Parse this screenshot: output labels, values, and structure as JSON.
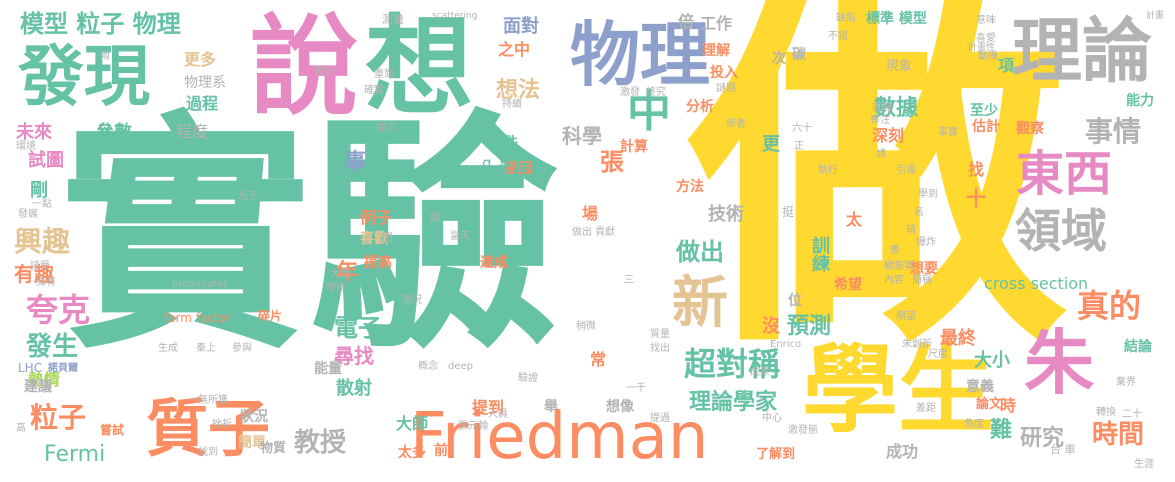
{
  "palette": {
    "green": "#66c2a5",
    "yellow": "#ffd92f",
    "orange": "#fc8d62",
    "blue": "#8da0cb",
    "pink": "#e78ac3",
    "lime": "#a6d854",
    "tan": "#e5c494",
    "gray": "#b3b3b3"
  },
  "words": [
    {
      "text": "實驗",
      "color": "green"
    },
    {
      "text": "做",
      "color": "yellow"
    },
    {
      "text": "說",
      "color": "pink"
    },
    {
      "text": "想",
      "color": "green"
    },
    {
      "text": "物理",
      "color": "blue"
    },
    {
      "text": "理論",
      "color": "gray"
    },
    {
      "text": "發現",
      "color": "green"
    },
    {
      "text": "學生",
      "color": "yellow"
    },
    {
      "text": "Friedman",
      "color": "orange"
    },
    {
      "text": "質子",
      "color": "orange"
    },
    {
      "text": "朱",
      "color": "pink"
    },
    {
      "text": "東西",
      "color": "pink"
    },
    {
      "text": "領域",
      "color": "gray"
    },
    {
      "text": "中",
      "color": "green"
    },
    {
      "text": "新",
      "color": "tan"
    },
    {
      "text": "超對稱",
      "color": "green"
    },
    {
      "text": "真的",
      "color": "orange"
    },
    {
      "text": "事情",
      "color": "gray"
    },
    {
      "text": "模型 粒子 物理",
      "color": "green"
    },
    {
      "text": "興趣",
      "color": "tan"
    },
    {
      "text": "夸克",
      "color": "pink"
    },
    {
      "text": "發生",
      "color": "green"
    },
    {
      "text": "粒子",
      "color": "orange"
    },
    {
      "text": "Fermi",
      "color": "green"
    },
    {
      "text": "教授",
      "color": "gray"
    },
    {
      "text": "理論學家",
      "color": "green"
    },
    {
      "text": "時間",
      "color": "orange"
    },
    {
      "text": "研究",
      "color": "gray"
    },
    {
      "text": "數據",
      "color": "green"
    },
    {
      "text": "面對",
      "color": "blue"
    },
    {
      "text": "想法",
      "color": "tan"
    },
    {
      "text": "科學",
      "color": "gray"
    },
    {
      "text": "做出",
      "color": "green"
    },
    {
      "text": "電子",
      "color": "green"
    },
    {
      "text": "預測",
      "color": "green"
    },
    {
      "text": "尋找",
      "color": "pink"
    },
    {
      "text": "散射",
      "color": "green"
    },
    {
      "text": "cross section",
      "color": "green"
    },
    {
      "text": "有趣",
      "color": "orange"
    },
    {
      "text": "年",
      "color": "orange"
    },
    {
      "text": "張",
      "color": "orange"
    },
    {
      "text": "事",
      "color": "blue"
    },
    {
      "text": "未來",
      "color": "pink"
    },
    {
      "text": "參數",
      "color": "green"
    },
    {
      "text": "程度",
      "color": "gray"
    },
    {
      "text": "過程",
      "color": "green"
    },
    {
      "text": "物理系",
      "color": "gray"
    },
    {
      "text": "更多",
      "color": "tan"
    },
    {
      "text": "試圖",
      "color": "pink"
    },
    {
      "text": "剛",
      "color": "green"
    },
    {
      "text": "例子",
      "color": "orange"
    },
    {
      "text": "喜歡",
      "color": "tan"
    },
    {
      "text": "技術",
      "color": "gray"
    },
    {
      "text": "訓練",
      "color": "green"
    },
    {
      "text": "大小",
      "color": "green"
    },
    {
      "text": "最終",
      "color": "orange"
    },
    {
      "text": "沒",
      "color": "orange"
    },
    {
      "text": "熱情",
      "color": "lime"
    },
    {
      "text": "建議",
      "color": "gray"
    },
    {
      "text": "狀況",
      "color": "gray"
    },
    {
      "text": "簡單",
      "color": "tan"
    },
    {
      "text": "大師",
      "color": "green"
    },
    {
      "text": "太多",
      "color": "orange"
    },
    {
      "text": "提到",
      "color": "orange"
    },
    {
      "text": "想像",
      "color": "gray"
    },
    {
      "text": "成功",
      "color": "gray"
    },
    {
      "text": "前",
      "color": "orange"
    },
    {
      "text": "物質",
      "color": "gray"
    },
    {
      "text": "能量",
      "color": "gray"
    },
    {
      "text": "提高",
      "color": "orange"
    },
    {
      "text": "達成",
      "color": "orange"
    },
    {
      "text": "計算",
      "color": "orange"
    },
    {
      "text": "原因",
      "color": "orange"
    },
    {
      "text": "平方",
      "color": "green"
    },
    {
      "text": "q",
      "color": "green"
    },
    {
      "text": "件",
      "color": "green"
    },
    {
      "text": "倍",
      "color": "gray"
    },
    {
      "text": "工作",
      "color": "gray"
    },
    {
      "text": "理解",
      "color": "orange"
    },
    {
      "text": "投入",
      "color": "orange"
    },
    {
      "text": "之中",
      "color": "orange"
    },
    {
      "text": "分析",
      "color": "orange"
    },
    {
      "text": "方法",
      "color": "orange"
    },
    {
      "text": "希望",
      "color": "orange"
    },
    {
      "text": "太",
      "color": "orange"
    },
    {
      "text": "想要",
      "color": "orange"
    },
    {
      "text": "深刻",
      "color": "orange"
    },
    {
      "text": "更",
      "color": "green"
    },
    {
      "text": "找",
      "color": "orange"
    },
    {
      "text": "十",
      "color": "orange"
    },
    {
      "text": "場",
      "color": "orange"
    },
    {
      "text": "次",
      "color": "gray"
    },
    {
      "text": "碳",
      "color": "gray"
    },
    {
      "text": "標準 模型",
      "color": "green"
    },
    {
      "text": "現象",
      "color": "gray"
    },
    {
      "text": "項",
      "color": "green"
    },
    {
      "text": "至少",
      "color": "green"
    },
    {
      "text": "估計",
      "color": "orange"
    },
    {
      "text": "觀察",
      "color": "orange"
    },
    {
      "text": "能力",
      "color": "green"
    },
    {
      "text": "意義",
      "color": "gray"
    },
    {
      "text": "結論",
      "color": "green"
    },
    {
      "text": "論文",
      "color": "orange"
    },
    {
      "text": "時",
      "color": "orange"
    },
    {
      "text": "難",
      "color": "green"
    },
    {
      "text": "位",
      "color": "gray"
    },
    {
      "text": "常",
      "color": "orange"
    },
    {
      "text": "舉",
      "color": "gray"
    },
    {
      "text": "裡",
      "color": "green"
    },
    {
      "text": "form factor",
      "color": "orange"
    },
    {
      "text": "碎片",
      "color": "orange"
    },
    {
      "text": "LHC",
      "color": "blue"
    },
    {
      "text": "諾貝爾",
      "color": "blue"
    },
    {
      "text": "嘗試",
      "color": "orange"
    },
    {
      "text": "了解到",
      "color": "orange"
    },
    {
      "text": "Enrico",
      "color": "gray"
    },
    {
      "text": "propagator",
      "color": "gray"
    },
    {
      "text": "deep",
      "color": "gray"
    },
    {
      "text": "scattering",
      "color": "gray"
    },
    {
      "text": "測量",
      "color": "gray"
    },
    {
      "text": "光子",
      "color": "gray"
    },
    {
      "text": "問",
      "color": "gray"
    },
    {
      "text": "不錯",
      "color": "gray"
    },
    {
      "text": "缺陷",
      "color": "gray"
    },
    {
      "text": "意味",
      "color": "gray"
    },
    {
      "text": "計畫",
      "color": "gray"
    },
    {
      "text": "驚訝",
      "color": "gray"
    },
    {
      "text": "一無所獲",
      "color": "gray"
    },
    {
      "text": "張元翰",
      "color": "gray"
    },
    {
      "text": "做出 貢獻",
      "color": "gray"
    },
    {
      "text": "當天",
      "color": "gray"
    },
    {
      "text": "大型",
      "color": "gray"
    },
    {
      "text": "學家",
      "color": "gray"
    },
    {
      "text": "接受",
      "color": "gray"
    },
    {
      "text": "擁有",
      "color": "gray"
    },
    {
      "text": "生成",
      "color": "gray"
    },
    {
      "text": "秦上",
      "color": "gray"
    },
    {
      "text": "參與",
      "color": "gray"
    },
    {
      "text": "概念",
      "color": "gray"
    },
    {
      "text": "挫折",
      "color": "gray"
    },
    {
      "text": "人員",
      "color": "gray"
    },
    {
      "text": "提過",
      "color": "gray"
    },
    {
      "text": "中心",
      "color": "gray"
    },
    {
      "text": "激發態",
      "color": "gray"
    },
    {
      "text": "台 車",
      "color": "gray"
    },
    {
      "text": "生涯",
      "color": "gray"
    },
    {
      "text": "業界",
      "color": "gray"
    },
    {
      "text": "二十",
      "color": "gray"
    },
    {
      "text": "角度",
      "color": "gray"
    },
    {
      "text": "差距",
      "color": "gray"
    },
    {
      "text": "尺度",
      "color": "gray"
    },
    {
      "text": "朱創新",
      "color": "gray"
    },
    {
      "text": "期望",
      "color": "gray"
    },
    {
      "text": "爆炸",
      "color": "gray"
    },
    {
      "text": "楊振寧",
      "color": "gray"
    },
    {
      "text": "學到",
      "color": "gray"
    },
    {
      "text": "引導",
      "color": "gray"
    },
    {
      "text": "專注",
      "color": "gray"
    },
    {
      "text": "確保",
      "color": "gray"
    },
    {
      "text": "事實",
      "color": "gray"
    },
    {
      "text": "執行",
      "color": "gray"
    },
    {
      "text": "持續",
      "color": "gray"
    },
    {
      "text": "確實",
      "color": "gray"
    },
    {
      "text": "重到",
      "color": "gray"
    },
    {
      "text": "六十",
      "color": "gray"
    },
    {
      "text": "環境",
      "color": "gray"
    },
    {
      "text": "一點",
      "color": "gray"
    },
    {
      "text": "發展",
      "color": "gray"
    },
    {
      "text": "提示",
      "color": "gray"
    },
    {
      "text": "挺",
      "color": "gray"
    },
    {
      "text": "成果",
      "color": "gray"
    },
    {
      "text": "驗證",
      "color": "gray"
    },
    {
      "text": "一千",
      "color": "gray"
    },
    {
      "text": "稍微",
      "color": "gray"
    },
    {
      "text": "質量",
      "color": "gray"
    },
    {
      "text": "找出",
      "color": "gray"
    },
    {
      "text": "現況",
      "color": "gray"
    },
    {
      "text": "喜愛",
      "color": "gray"
    },
    {
      "text": "動機",
      "color": "gray"
    },
    {
      "text": "計畫性",
      "color": "gray"
    },
    {
      "text": "兩",
      "color": "gray"
    },
    {
      "text": "高",
      "color": "gray"
    },
    {
      "text": "找到",
      "color": "gray"
    },
    {
      "text": "總",
      "color": "gray"
    },
    {
      "text": "三",
      "color": "gray"
    },
    {
      "text": "激發",
      "color": "gray"
    },
    {
      "text": "終究",
      "color": "gray"
    },
    {
      "text": "謎題",
      "color": "gray"
    },
    {
      "text": "學者",
      "color": "gray"
    },
    {
      "text": "正",
      "color": "gray"
    },
    {
      "text": "請",
      "color": "gray"
    },
    {
      "text": "名",
      "color": "gray"
    },
    {
      "text": "萌",
      "color": "gray"
    },
    {
      "text": "內容",
      "color": "gray"
    },
    {
      "text": "書",
      "color": "gray"
    },
    {
      "text": "簡稱",
      "color": "gray"
    },
    {
      "text": "轉換",
      "color": "gray"
    }
  ]
}
